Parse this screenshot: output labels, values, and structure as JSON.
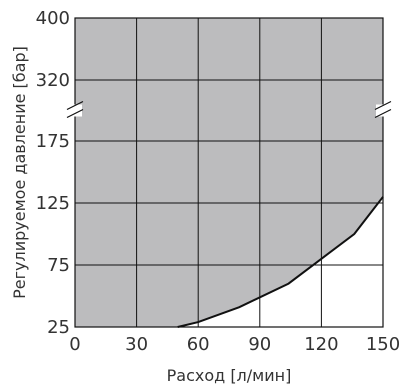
{
  "chart_data": {
    "type": "area",
    "xlabel": "Расход [л/мин]",
    "ylabel": "Регулируемое давление [бар]",
    "x_ticks": [
      0,
      30,
      60,
      90,
      120,
      150
    ],
    "x_tick_labels": [
      "0",
      "30",
      "60",
      "90",
      "120",
      "150"
    ],
    "xlim": [
      0,
      150
    ],
    "y_ticks": [
      25,
      75,
      125,
      175,
      320,
      400
    ],
    "y_tick_labels": [
      "25",
      "75",
      "125",
      "175",
      "320",
      "400"
    ],
    "y_axis_break": "between 175 and 320",
    "grid": true,
    "fill_color": "#bcbcbe",
    "line_color": "#111111",
    "grid_color": "#111111",
    "series": [
      {
        "x": [
          50,
          60,
          80,
          104,
          120,
          136,
          150
        ],
        "y": [
          25,
          29,
          41,
          60,
          80,
          100,
          130
        ]
      }
    ],
    "shading": "shaded region above curve"
  }
}
